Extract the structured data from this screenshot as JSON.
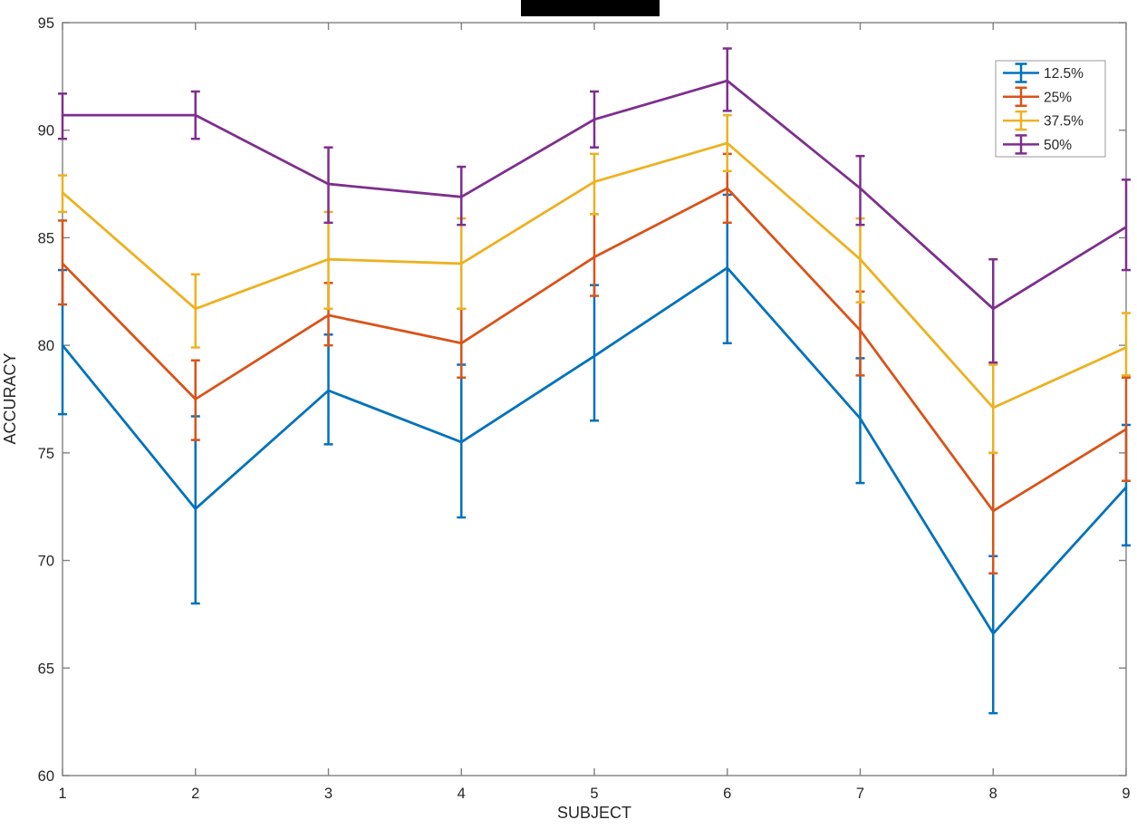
{
  "chart_data": {
    "type": "line",
    "title_redacted": true,
    "xlabel": "SUBJECT",
    "ylabel": "ACCURACY",
    "x": [
      1,
      2,
      3,
      4,
      5,
      6,
      7,
      8,
      9
    ],
    "x_tick_labels": [
      "1",
      "2",
      "3",
      "4",
      "5",
      "6",
      "7",
      "8",
      "9"
    ],
    "yticks": [
      60,
      65,
      70,
      75,
      80,
      85,
      90,
      95
    ],
    "y_tick_labels": [
      "60",
      "65",
      "70",
      "75",
      "80",
      "85",
      "90",
      "95"
    ],
    "xlim": [
      1,
      9
    ],
    "ylim": [
      60,
      95
    ],
    "grid": false,
    "legend_position": "northeast",
    "error_bars": true,
    "axis_color": "#808080",
    "text_color": "#262626",
    "series": [
      {
        "name": "12.5%",
        "color": "#0072BD",
        "values": [
          80.0,
          72.4,
          77.9,
          75.5,
          79.5,
          83.6,
          76.6,
          66.6,
          73.4
        ],
        "err_upper": [
          83.5,
          76.7,
          80.5,
          79.1,
          82.8,
          87.0,
          79.4,
          70.2,
          76.3
        ],
        "err_lower": [
          76.8,
          68.0,
          75.4,
          72.0,
          76.5,
          80.1,
          73.6,
          62.9,
          70.7
        ]
      },
      {
        "name": "25%",
        "color": "#D95319",
        "values": [
          83.8,
          77.5,
          81.4,
          80.1,
          84.1,
          87.3,
          80.7,
          72.3,
          76.1
        ],
        "err_upper": [
          85.8,
          79.3,
          82.9,
          81.7,
          86.1,
          88.9,
          82.5,
          75.0,
          78.5
        ],
        "err_lower": [
          81.9,
          75.6,
          80.0,
          78.5,
          82.3,
          85.7,
          78.6,
          69.4,
          73.7
        ]
      },
      {
        "name": "37.5%",
        "color": "#EDB120",
        "values": [
          87.1,
          81.7,
          84.0,
          83.8,
          87.6,
          89.4,
          84.0,
          77.1,
          79.9
        ],
        "err_upper": [
          87.9,
          83.3,
          86.2,
          85.9,
          88.9,
          90.7,
          85.9,
          79.1,
          81.5
        ],
        "err_lower": [
          86.2,
          79.9,
          81.7,
          81.7,
          86.1,
          88.1,
          82.0,
          75.0,
          78.6
        ]
      },
      {
        "name": "50%",
        "color": "#7E2F8E",
        "values": [
          90.7,
          90.7,
          87.5,
          86.9,
          90.5,
          92.3,
          87.3,
          81.7,
          85.5
        ],
        "err_upper": [
          91.7,
          91.8,
          89.2,
          88.3,
          91.8,
          93.8,
          88.8,
          84.0,
          87.7
        ],
        "err_lower": [
          89.6,
          89.6,
          85.7,
          85.6,
          89.2,
          90.9,
          85.6,
          79.2,
          83.5
        ]
      }
    ]
  }
}
